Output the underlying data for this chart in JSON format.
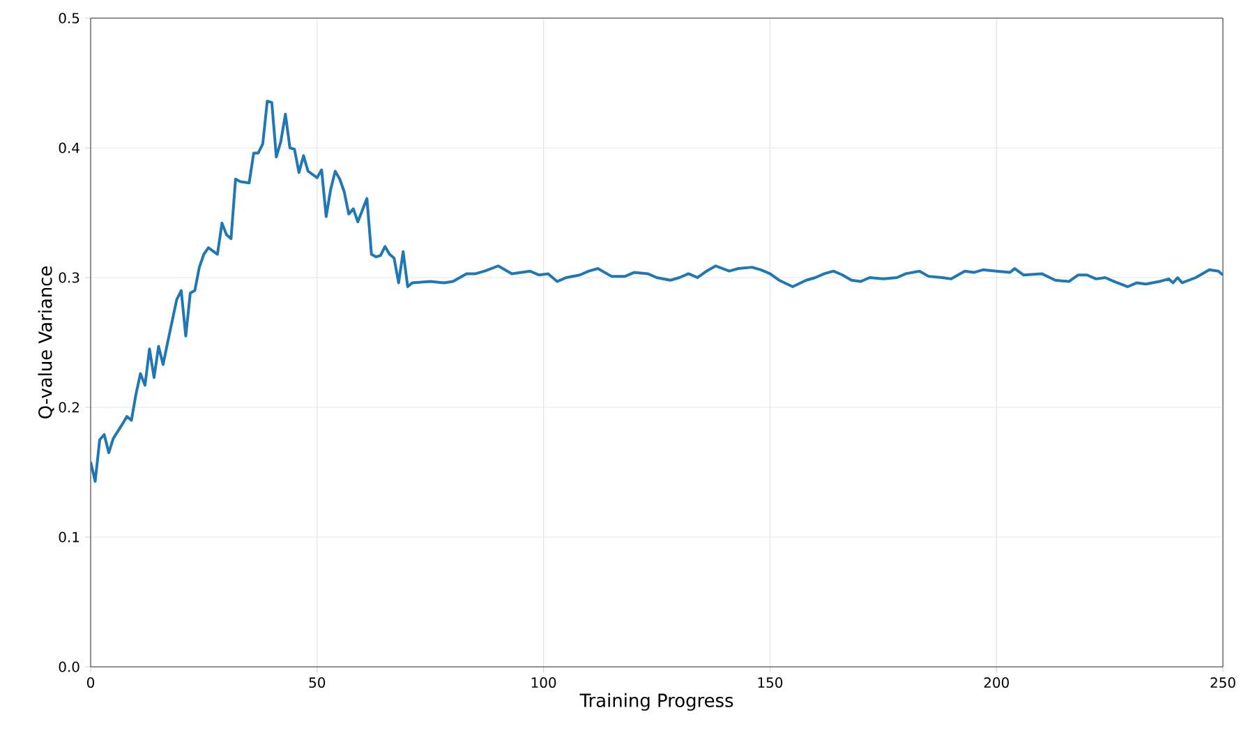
{
  "chart_data": {
    "type": "line",
    "xlabel": "Training Progress",
    "ylabel": "Q-value Variance",
    "xlim": [
      0,
      250
    ],
    "ylim": [
      0,
      0.5
    ],
    "xticks": [
      0,
      50,
      100,
      150,
      200,
      250
    ],
    "yticks": [
      {
        "value": 0,
        "label": "0.0"
      },
      0.1,
      0.2,
      0.3,
      0.4,
      0.5
    ],
    "grid": true,
    "line_style": "solid",
    "marker": "none",
    "series": [
      {
        "color": "#1f77b4",
        "x": [
          0,
          1,
          2,
          3,
          4,
          5,
          7,
          8,
          9,
          10,
          11,
          12,
          13,
          14,
          15,
          16,
          17,
          19,
          20,
          21,
          22,
          23,
          24,
          25,
          26,
          28,
          29,
          30,
          31,
          32,
          33,
          35,
          36,
          37,
          38,
          39,
          40,
          41,
          42,
          43,
          44,
          45,
          46,
          47,
          48,
          50,
          51,
          52,
          53,
          54,
          55,
          56,
          57,
          58,
          59,
          61,
          62,
          63,
          64,
          65,
          66,
          67,
          68,
          69,
          70,
          71,
          75,
          78,
          80,
          83,
          85,
          87,
          90,
          93,
          95,
          97,
          99,
          101,
          103,
          105,
          108,
          110,
          112,
          115,
          118,
          120,
          123,
          125,
          128,
          130,
          132,
          134,
          136,
          138,
          141,
          143,
          146,
          148,
          150,
          152,
          155,
          158,
          160,
          162,
          164,
          166,
          168,
          170,
          172,
          175,
          178,
          180,
          183,
          185,
          188,
          190,
          193,
          195,
          197,
          200,
          203,
          204,
          206,
          210,
          213,
          216,
          218,
          220,
          222,
          224,
          226,
          229,
          231,
          233,
          236,
          238,
          239,
          240,
          241,
          244,
          247,
          249,
          250
        ],
        "values": [
          0.158,
          0.143,
          0.175,
          0.179,
          0.165,
          0.176,
          0.187,
          0.193,
          0.19,
          0.21,
          0.226,
          0.217,
          0.245,
          0.223,
          0.247,
          0.233,
          0.25,
          0.283,
          0.29,
          0.255,
          0.288,
          0.29,
          0.308,
          0.318,
          0.323,
          0.318,
          0.342,
          0.333,
          0.33,
          0.376,
          0.374,
          0.373,
          0.396,
          0.396,
          0.403,
          0.436,
          0.435,
          0.393,
          0.405,
          0.426,
          0.4,
          0.399,
          0.381,
          0.394,
          0.382,
          0.377,
          0.383,
          0.347,
          0.368,
          0.382,
          0.376,
          0.366,
          0.349,
          0.353,
          0.343,
          0.361,
          0.318,
          0.316,
          0.317,
          0.324,
          0.318,
          0.315,
          0.296,
          0.32,
          0.293,
          0.296,
          0.297,
          0.296,
          0.297,
          0.303,
          0.303,
          0.305,
          0.309,
          0.303,
          0.304,
          0.305,
          0.302,
          0.303,
          0.297,
          0.3,
          0.302,
          0.305,
          0.307,
          0.301,
          0.301,
          0.304,
          0.303,
          0.3,
          0.298,
          0.3,
          0.303,
          0.3,
          0.305,
          0.309,
          0.305,
          0.307,
          0.308,
          0.306,
          0.303,
          0.298,
          0.293,
          0.298,
          0.3,
          0.303,
          0.305,
          0.302,
          0.298,
          0.297,
          0.3,
          0.299,
          0.3,
          0.303,
          0.305,
          0.301,
          0.3,
          0.299,
          0.305,
          0.304,
          0.306,
          0.305,
          0.304,
          0.307,
          0.302,
          0.303,
          0.298,
          0.297,
          0.302,
          0.302,
          0.299,
          0.3,
          0.297,
          0.293,
          0.296,
          0.295,
          0.297,
          0.299,
          0.296,
          0.3,
          0.296,
          0.3,
          0.306,
          0.305,
          0.302
        ]
      }
    ]
  }
}
